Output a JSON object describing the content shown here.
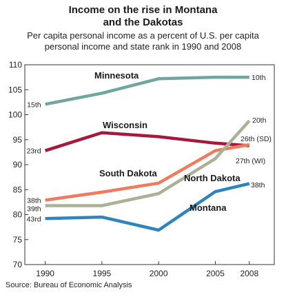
{
  "title_line1": "Income on the rise in Montana",
  "title_line2": "and the Dakotas",
  "subtitle_line1": "Per capita personal income as a percent of U.S. per capita",
  "subtitle_line2": "personal income and state rank in 1990 and 2008",
  "source": "Source: Bureau of Economic Analysis",
  "chart_data": {
    "type": "line",
    "title": "Income on the rise in Montana and the Dakotas",
    "subtitle": "Per capita personal income as a percent of U.S. per capita personal income and state rank in 1990 and 2008",
    "x": [
      1990,
      1995,
      2000,
      2005,
      2008
    ],
    "xlabel": "",
    "ylabel": "",
    "ylim": [
      70,
      110
    ],
    "yticks": [
      70,
      75,
      80,
      85,
      90,
      95,
      100,
      105,
      110
    ],
    "grid": false,
    "series": [
      {
        "name": "Minnesota",
        "color": "#6fa6a0",
        "values": [
          102.1,
          104.3,
          107.2,
          107.5,
          107.5
        ],
        "rank_start": "15th",
        "rank_end": "10th"
      },
      {
        "name": "Wisconsin",
        "color": "#a6193c",
        "values": [
          92.8,
          96.4,
          95.6,
          94.3,
          93.8
        ],
        "rank_start": "23rd",
        "rank_end": "27th (WI)"
      },
      {
        "name": "South Dakota",
        "color": "#f07a5e",
        "values": [
          82.9,
          84.5,
          86.3,
          92.8,
          94.0
        ],
        "rank_start": "38th",
        "rank_end": "26th (SD)"
      },
      {
        "name": "North Dakota",
        "color": "#a9b196",
        "values": [
          81.8,
          81.8,
          84.2,
          91.2,
          98.8
        ],
        "rank_start": "39th",
        "rank_end": "20th"
      },
      {
        "name": "Montana",
        "color": "#2f84bd",
        "values": [
          79.2,
          79.5,
          76.9,
          84.6,
          86.2
        ],
        "rank_start": "43rd",
        "rank_end": "38th"
      }
    ]
  }
}
